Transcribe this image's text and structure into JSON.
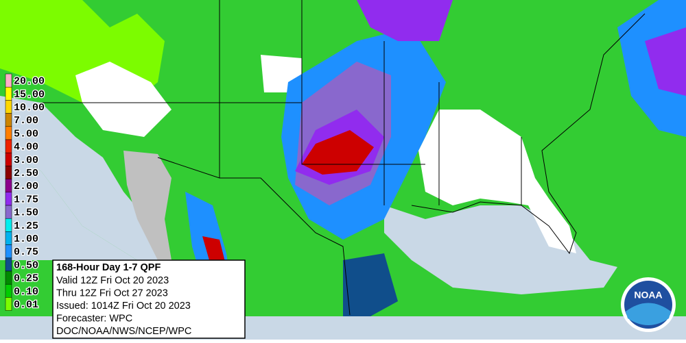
{
  "legend": [
    {
      "label": "20.00",
      "color": "#ffaec9"
    },
    {
      "label": "15.00",
      "color": "#ffff00"
    },
    {
      "label": "10.00",
      "color": "#ffd700"
    },
    {
      "label": "7.00",
      "color": "#cd8500"
    },
    {
      "label": "5.00",
      "color": "#ff7f00"
    },
    {
      "label": "4.00",
      "color": "#ee2200"
    },
    {
      "label": "3.00",
      "color": "#cd0000"
    },
    {
      "label": "2.50",
      "color": "#8b0000"
    },
    {
      "label": "2.00",
      "color": "#8b008b"
    },
    {
      "label": "1.75",
      "color": "#912cee"
    },
    {
      "label": "1.50",
      "color": "#8968cd"
    },
    {
      "label": "1.25",
      "color": "#00eeee"
    },
    {
      "label": "1.00",
      "color": "#00b2ee"
    },
    {
      "label": "0.75",
      "color": "#1e90ff"
    },
    {
      "label": "0.50",
      "color": "#104e8b"
    },
    {
      "label": "0.25",
      "color": "#008b00"
    },
    {
      "label": "0.10",
      "color": "#00cd00"
    },
    {
      "label": "0.01",
      "color": "#7cfc00"
    }
  ],
  "info": {
    "title": "168-Hour Day 1-7 QPF",
    "lines": [
      "Valid 12Z Fri Oct 20 2023",
      "Thru 12Z Fri Oct 27 2023",
      "Issued: 1014Z Fri Oct 20 2023",
      "Forecaster: WPC",
      "DOC/NOAA/NWS/NCEP/WPC"
    ]
  },
  "logo": "NOAA"
}
